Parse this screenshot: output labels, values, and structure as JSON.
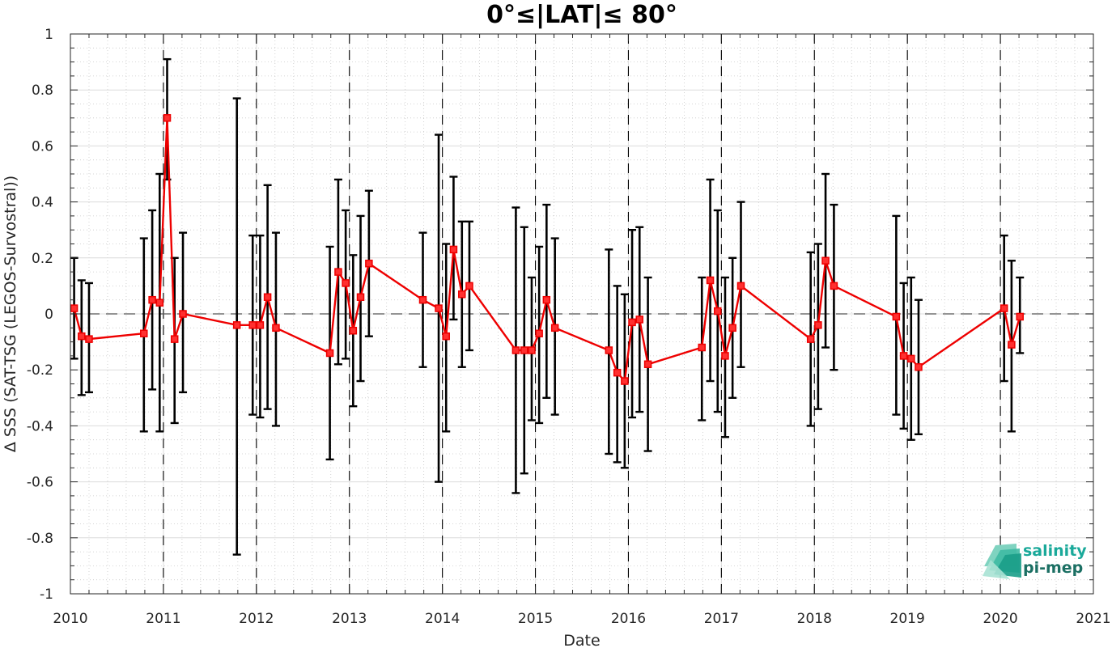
{
  "chart_data": {
    "type": "line",
    "title": "0°≤|LAT|≤ 80°",
    "xlabel": "Date",
    "ylabel": "Δ SSS (SAT-TSG (LEGOS-Survostral))",
    "xlim": [
      2010,
      2021
    ],
    "ylim": [
      -1,
      1
    ],
    "x_ticks": [
      "2010",
      "2011",
      "2012",
      "2013",
      "2014",
      "2015",
      "2016",
      "2017",
      "2018",
      "2019",
      "2020",
      "2021"
    ],
    "y_ticks": [
      "-1",
      "-0.8",
      "-0.6",
      "-0.4",
      "-0.2",
      "0",
      "0.2",
      "0.4",
      "0.6",
      "0.8",
      "1"
    ],
    "grid": true,
    "year_boundaries": [
      2011,
      2012,
      2013,
      2014,
      2015,
      2016,
      2017,
      2018,
      2019,
      2020
    ],
    "reference_line_y": 0,
    "series": [
      {
        "color": "#ee0000",
        "errorbar_color": "#000000",
        "points": [
          {
            "x": 2010.04,
            "y": 0.02,
            "lo": -0.16,
            "hi": 0.2
          },
          {
            "x": 2010.12,
            "y": -0.08,
            "lo": -0.29,
            "hi": 0.12
          },
          {
            "x": 2010.2,
            "y": -0.09,
            "lo": -0.28,
            "hi": 0.11
          },
          {
            "x": 2010.79,
            "y": -0.07,
            "lo": -0.42,
            "hi": 0.27
          },
          {
            "x": 2010.88,
            "y": 0.05,
            "lo": -0.27,
            "hi": 0.37
          },
          {
            "x": 2010.96,
            "y": 0.04,
            "lo": -0.42,
            "hi": 0.5
          },
          {
            "x": 2011.04,
            "y": 0.7,
            "lo": 0.48,
            "hi": 0.91
          },
          {
            "x": 2011.12,
            "y": -0.09,
            "lo": -0.39,
            "hi": 0.2
          },
          {
            "x": 2011.21,
            "y": 0.0,
            "lo": -0.28,
            "hi": 0.29
          },
          {
            "x": 2011.79,
            "y": -0.04,
            "lo": -0.86,
            "hi": 0.77
          },
          {
            "x": 2011.96,
            "y": -0.04,
            "lo": -0.36,
            "hi": 0.28
          },
          {
            "x": 2012.04,
            "y": -0.04,
            "lo": -0.37,
            "hi": 0.28
          },
          {
            "x": 2012.12,
            "y": 0.06,
            "lo": -0.34,
            "hi": 0.46
          },
          {
            "x": 2012.21,
            "y": -0.05,
            "lo": -0.4,
            "hi": 0.29
          },
          {
            "x": 2012.79,
            "y": -0.14,
            "lo": -0.52,
            "hi": 0.24
          },
          {
            "x": 2012.88,
            "y": 0.15,
            "lo": -0.18,
            "hi": 0.48
          },
          {
            "x": 2012.96,
            "y": 0.11,
            "lo": -0.16,
            "hi": 0.37
          },
          {
            "x": 2013.04,
            "y": -0.06,
            "lo": -0.33,
            "hi": 0.21
          },
          {
            "x": 2013.12,
            "y": 0.06,
            "lo": -0.24,
            "hi": 0.35
          },
          {
            "x": 2013.21,
            "y": 0.18,
            "lo": -0.08,
            "hi": 0.44
          },
          {
            "x": 2013.79,
            "y": 0.05,
            "lo": -0.19,
            "hi": 0.29
          },
          {
            "x": 2013.96,
            "y": 0.02,
            "lo": -0.6,
            "hi": 0.64
          },
          {
            "x": 2014.04,
            "y": -0.08,
            "lo": -0.42,
            "hi": 0.25
          },
          {
            "x": 2014.12,
            "y": 0.23,
            "lo": -0.02,
            "hi": 0.49
          },
          {
            "x": 2014.21,
            "y": 0.07,
            "lo": -0.19,
            "hi": 0.33
          },
          {
            "x": 2014.29,
            "y": 0.1,
            "lo": -0.13,
            "hi": 0.33
          },
          {
            "x": 2014.79,
            "y": -0.13,
            "lo": -0.64,
            "hi": 0.38
          },
          {
            "x": 2014.88,
            "y": -0.13,
            "lo": -0.57,
            "hi": 0.31
          },
          {
            "x": 2014.96,
            "y": -0.13,
            "lo": -0.38,
            "hi": 0.13
          },
          {
            "x": 2015.04,
            "y": -0.07,
            "lo": -0.39,
            "hi": 0.24
          },
          {
            "x": 2015.12,
            "y": 0.05,
            "lo": -0.3,
            "hi": 0.39
          },
          {
            "x": 2015.21,
            "y": -0.05,
            "lo": -0.36,
            "hi": 0.27
          },
          {
            "x": 2015.79,
            "y": -0.13,
            "lo": -0.5,
            "hi": 0.23
          },
          {
            "x": 2015.88,
            "y": -0.21,
            "lo": -0.53,
            "hi": 0.1
          },
          {
            "x": 2015.96,
            "y": -0.24,
            "lo": -0.55,
            "hi": 0.07
          },
          {
            "x": 2016.04,
            "y": -0.03,
            "lo": -0.37,
            "hi": 0.3
          },
          {
            "x": 2016.12,
            "y": -0.02,
            "lo": -0.35,
            "hi": 0.31
          },
          {
            "x": 2016.21,
            "y": -0.18,
            "lo": -0.49,
            "hi": 0.13
          },
          {
            "x": 2016.79,
            "y": -0.12,
            "lo": -0.38,
            "hi": 0.13
          },
          {
            "x": 2016.88,
            "y": 0.12,
            "lo": -0.24,
            "hi": 0.48
          },
          {
            "x": 2016.96,
            "y": 0.01,
            "lo": -0.35,
            "hi": 0.37
          },
          {
            "x": 2017.04,
            "y": -0.15,
            "lo": -0.44,
            "hi": 0.13
          },
          {
            "x": 2017.12,
            "y": -0.05,
            "lo": -0.3,
            "hi": 0.2
          },
          {
            "x": 2017.21,
            "y": 0.1,
            "lo": -0.19,
            "hi": 0.4
          },
          {
            "x": 2017.96,
            "y": -0.09,
            "lo": -0.4,
            "hi": 0.22
          },
          {
            "x": 2018.04,
            "y": -0.04,
            "lo": -0.34,
            "hi": 0.25
          },
          {
            "x": 2018.12,
            "y": 0.19,
            "lo": -0.12,
            "hi": 0.5
          },
          {
            "x": 2018.21,
            "y": 0.1,
            "lo": -0.2,
            "hi": 0.39
          },
          {
            "x": 2018.88,
            "y": -0.01,
            "lo": -0.36,
            "hi": 0.35
          },
          {
            "x": 2018.96,
            "y": -0.15,
            "lo": -0.41,
            "hi": 0.11
          },
          {
            "x": 2019.04,
            "y": -0.16,
            "lo": -0.45,
            "hi": 0.13
          },
          {
            "x": 2019.12,
            "y": -0.19,
            "lo": -0.43,
            "hi": 0.05
          },
          {
            "x": 2020.04,
            "y": 0.02,
            "lo": -0.24,
            "hi": 0.28
          },
          {
            "x": 2020.12,
            "y": -0.11,
            "lo": -0.42,
            "hi": 0.19
          },
          {
            "x": 2020.21,
            "y": -0.01,
            "lo": -0.14,
            "hi": 0.13
          }
        ]
      }
    ]
  },
  "logo": {
    "line1": "salinity",
    "line2": "pi-mep",
    "color1": "#1aa99a",
    "color2": "#1b6f63"
  }
}
